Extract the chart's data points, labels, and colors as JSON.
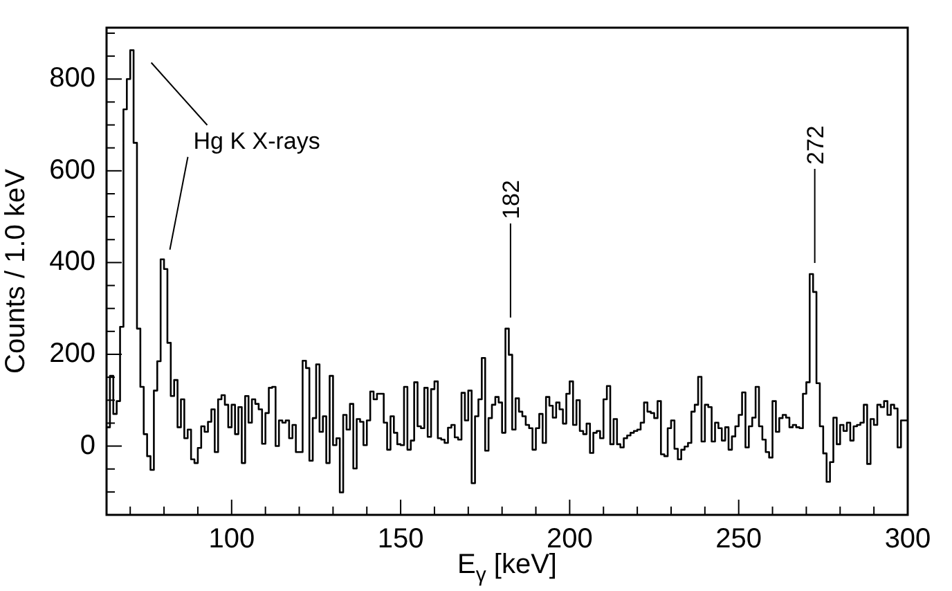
{
  "chart_data": {
    "type": "histogram",
    "xlabel": "E$_{γ}$ [keV]",
    "ylabel": "Counts / 1.0 keV",
    "bins": [
      63,
      64,
      65,
      66,
      67,
      68,
      69,
      70,
      71,
      72,
      73,
      74,
      75,
      76,
      77,
      78,
      79,
      80,
      81,
      82,
      83,
      84,
      85,
      86,
      87,
      88,
      89,
      90,
      91,
      92,
      93,
      94,
      95,
      96,
      97,
      98,
      99,
      100,
      101,
      102,
      103,
      104,
      105,
      106,
      107,
      108,
      109,
      110,
      111,
      112,
      113,
      114,
      115,
      116,
      117,
      118,
      119,
      120,
      121,
      122,
      123,
      124,
      125,
      126,
      127,
      128,
      129,
      130,
      131,
      132,
      133,
      134,
      135,
      136,
      137,
      138,
      139,
      140,
      141,
      142,
      143,
      144,
      145,
      146,
      147,
      148,
      149,
      150,
      151,
      152,
      153,
      154,
      155,
      156,
      157,
      158,
      159,
      160,
      161,
      162,
      163,
      164,
      165,
      166,
      167,
      168,
      169,
      170,
      171,
      172,
      173,
      174,
      175,
      176,
      177,
      178,
      179,
      180,
      181,
      182,
      183,
      184,
      185,
      186,
      187,
      188,
      189,
      190,
      191,
      192,
      193,
      194,
      195,
      196,
      197,
      198,
      199,
      200,
      201,
      202,
      203,
      204,
      205,
      206,
      207,
      208,
      209,
      210,
      211,
      212,
      213,
      214,
      215,
      216,
      217,
      218,
      219,
      220,
      221,
      222,
      223,
      224,
      225,
      226,
      227,
      228,
      229,
      230,
      231,
      232,
      233,
      234,
      235,
      236,
      237,
      238,
      239,
      240,
      241,
      242,
      243,
      244,
      245,
      246,
      247,
      248,
      249,
      250,
      251,
      252,
      253,
      254,
      255,
      256,
      257,
      258,
      259,
      260,
      261,
      262,
      263,
      264,
      265,
      266,
      267,
      268,
      269,
      270,
      271,
      272,
      273,
      274,
      275,
      276,
      277,
      278,
      279,
      280,
      281,
      282,
      283,
      284,
      285,
      286,
      287,
      288,
      289,
      290,
      291,
      292,
      293,
      294,
      295,
      296,
      297,
      298,
      299,
      300
    ],
    "values": [
      41,
      153,
      70,
      98,
      260,
      734,
      800,
      863,
      661,
      256,
      129,
      26,
      -22,
      -52,
      121,
      185,
      407,
      386,
      225,
      109,
      144,
      41,
      102,
      17,
      36,
      -29,
      -37,
      -4,
      43,
      31,
      53,
      80,
      -13,
      102,
      111,
      90,
      41,
      90,
      26,
      85,
      -37,
      109,
      51,
      102,
      92,
      80,
      5,
      72,
      127,
      129,
      0,
      56,
      51,
      56,
      17,
      46,
      -13,
      -13,
      186,
      170,
      -32,
      61,
      178,
      31,
      65,
      -37,
      153,
      2,
      17,
      -101,
      68,
      36,
      92,
      -49,
      59,
      53,
      2,
      56,
      119,
      102,
      114,
      114,
      51,
      -8,
      65,
      29,
      4,
      2,
      129,
      -8,
      12,
      139,
      43,
      39,
      127,
      20,
      124,
      141,
      17,
      14,
      7,
      40,
      46,
      19,
      14,
      116,
      56,
      121,
      -81,
      65,
      102,
      192,
      -10,
      61,
      90,
      107,
      95,
      29,
      256,
      199,
      36,
      104,
      75,
      65,
      46,
      39,
      -8,
      39,
      70,
      7,
      107,
      88,
      62,
      95,
      80,
      49,
      114,
      141,
      46,
      100,
      33,
      26,
      49,
      -15,
      29,
      33,
      17,
      102,
      131,
      4,
      59,
      4,
      -3,
      17,
      23,
      29,
      33,
      36,
      51,
      95,
      75,
      72,
      61,
      98,
      -18,
      -22,
      39,
      56,
      -6,
      -29,
      -8,
      -1,
      7,
      75,
      90,
      151,
      10,
      90,
      85,
      10,
      51,
      39,
      12,
      41,
      -8,
      21,
      43,
      68,
      117,
      -3,
      43,
      62,
      129,
      43,
      14,
      -13,
      -25,
      98,
      31,
      61,
      68,
      62,
      41,
      46,
      41,
      39,
      114,
      139,
      375,
      336,
      137,
      43,
      -16,
      -78,
      -35,
      62,
      4,
      46,
      33,
      51,
      12,
      43,
      46,
      51,
      90,
      -39,
      59,
      46,
      90,
      85,
      98,
      68,
      90,
      82,
      -3,
      56,
      56
    ],
    "color": "#000000",
    "xlim": [
      63,
      300
    ],
    "xticks": [
      {
        "value": 70,
        "label": null
      },
      {
        "value": 80,
        "label": null
      },
      {
        "value": 90,
        "label": null
      },
      100,
      {
        "value": 110,
        "label": null
      },
      {
        "value": 120,
        "label": null
      },
      {
        "value": 130,
        "label": null
      },
      {
        "value": 140,
        "label": null
      },
      150,
      {
        "value": 160,
        "label": null
      },
      {
        "value": 170,
        "label": null
      },
      {
        "value": 180,
        "label": null
      },
      {
        "value": 190,
        "label": null
      },
      200,
      {
        "value": 210,
        "label": null
      },
      {
        "value": 220,
        "label": null
      },
      {
        "value": 230,
        "label": null
      },
      {
        "value": 240,
        "label": null
      },
      250,
      {
        "value": 260,
        "label": null
      },
      {
        "value": 270,
        "label": null
      },
      {
        "value": 280,
        "label": null
      },
      {
        "value": 290,
        "label": null
      },
      300
    ],
    "ylim": [
      -150,
      912
    ],
    "yticks": [
      {
        "value": -100,
        "label": null
      },
      {
        "value": -50,
        "label": null
      },
      0,
      {
        "value": 50,
        "label": null
      },
      {
        "value": 100,
        "label": null
      },
      {
        "value": 150,
        "label": null
      },
      200,
      {
        "value": 250,
        "label": null
      },
      {
        "value": 300,
        "label": null
      },
      {
        "value": 350,
        "label": null
      },
      400,
      {
        "value": 450,
        "label": null
      },
      {
        "value": 500,
        "label": null
      },
      {
        "value": 550,
        "label": null
      },
      600,
      {
        "value": 650,
        "label": null
      },
      {
        "value": 700,
        "label": null
      },
      {
        "value": 750,
        "label": null
      },
      800,
      {
        "value": 850,
        "label": null
      },
      {
        "value": 900,
        "label": null
      }
    ],
    "annotations": [
      {
        "text": "Hg K X-rays",
        "x": 80,
        "y": 407
      },
      {
        "text": "182",
        "x": 182,
        "y": 256
      },
      {
        "text": "272",
        "x": 272,
        "y": 375
      }
    ]
  }
}
